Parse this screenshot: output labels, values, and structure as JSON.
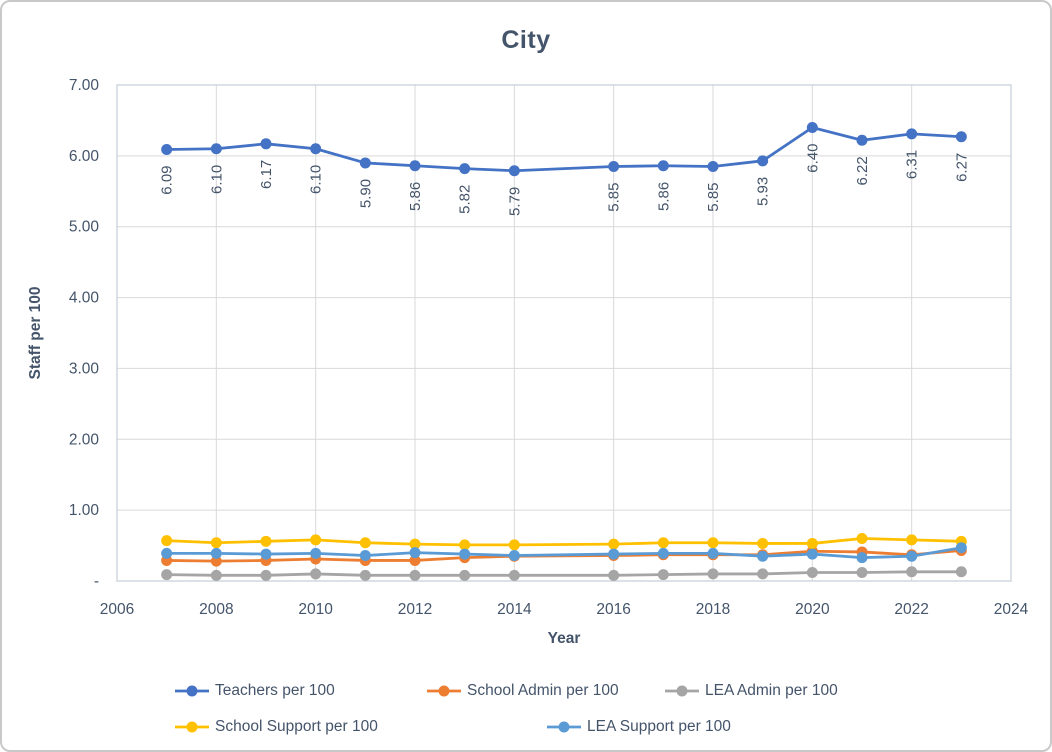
{
  "chart_data": {
    "type": "line",
    "title": "City",
    "xlabel": "Year",
    "ylabel": "Staff per 100",
    "xlim": [
      2006,
      2024
    ],
    "ylim": [
      0,
      7
    ],
    "grid": true,
    "legend_position": "bottom",
    "x_ticks": [
      "2006",
      "2008",
      "2010",
      "2012",
      "2014",
      "2016",
      "2018",
      "2020",
      "2022",
      "2024"
    ],
    "x_tick_values": [
      2006,
      2008,
      2010,
      2012,
      2014,
      2016,
      2018,
      2020,
      2022,
      2024
    ],
    "y_ticks": [
      "7.00",
      "6.00",
      "5.00",
      "4.00",
      "3.00",
      "2.00",
      "1.00",
      "-"
    ],
    "y_tick_values": [
      7,
      6,
      5,
      4,
      3,
      2,
      1,
      0
    ],
    "x": [
      2007,
      2008,
      2009,
      2010,
      2011,
      2012,
      2013,
      2014,
      2016,
      2017,
      2018,
      2019,
      2020,
      2021,
      2022,
      2023
    ],
    "series": [
      {
        "name": "Teachers per 100",
        "color": "#4472C4",
        "values": [
          6.09,
          6.1,
          6.17,
          6.1,
          5.9,
          5.86,
          5.82,
          5.79,
          5.85,
          5.86,
          5.85,
          5.93,
          6.4,
          6.22,
          6.31,
          6.27
        ],
        "data_labels": [
          "6.09",
          "6.10",
          "6.17",
          "6.10",
          "5.90",
          "5.86",
          "5.82",
          "5.79",
          "5.85",
          "5.86",
          "5.85",
          "5.93",
          "6.40",
          "6.22",
          "6.31",
          "6.27"
        ]
      },
      {
        "name": "School Admin per 100",
        "color": "#ED7D31",
        "values": [
          0.29,
          0.28,
          0.29,
          0.31,
          0.29,
          0.29,
          0.33,
          0.35,
          0.36,
          0.37,
          0.37,
          0.37,
          0.42,
          0.41,
          0.37,
          0.43
        ]
      },
      {
        "name": "LEA Admin per 100",
        "color": "#A5A5A5",
        "values": [
          0.09,
          0.08,
          0.08,
          0.1,
          0.08,
          0.08,
          0.08,
          0.08,
          0.08,
          0.09,
          0.1,
          0.1,
          0.12,
          0.12,
          0.13,
          0.13
        ]
      },
      {
        "name": "School Support per 100",
        "color": "#FFC000",
        "values": [
          0.57,
          0.54,
          0.56,
          0.58,
          0.54,
          0.52,
          0.51,
          0.51,
          0.52,
          0.54,
          0.54,
          0.53,
          0.53,
          0.6,
          0.58,
          0.56
        ]
      },
      {
        "name": "LEA Support per 100",
        "color": "#5B9BD5",
        "values": [
          0.39,
          0.39,
          0.38,
          0.39,
          0.36,
          0.4,
          0.38,
          0.36,
          0.38,
          0.39,
          0.39,
          0.35,
          0.38,
          0.33,
          0.35,
          0.47
        ]
      }
    ],
    "colors": {
      "text": "#44546A",
      "gridline": "#D9D9D9",
      "plot_border": "#C9CFDA",
      "frame_border": "#C9C9C9"
    }
  }
}
